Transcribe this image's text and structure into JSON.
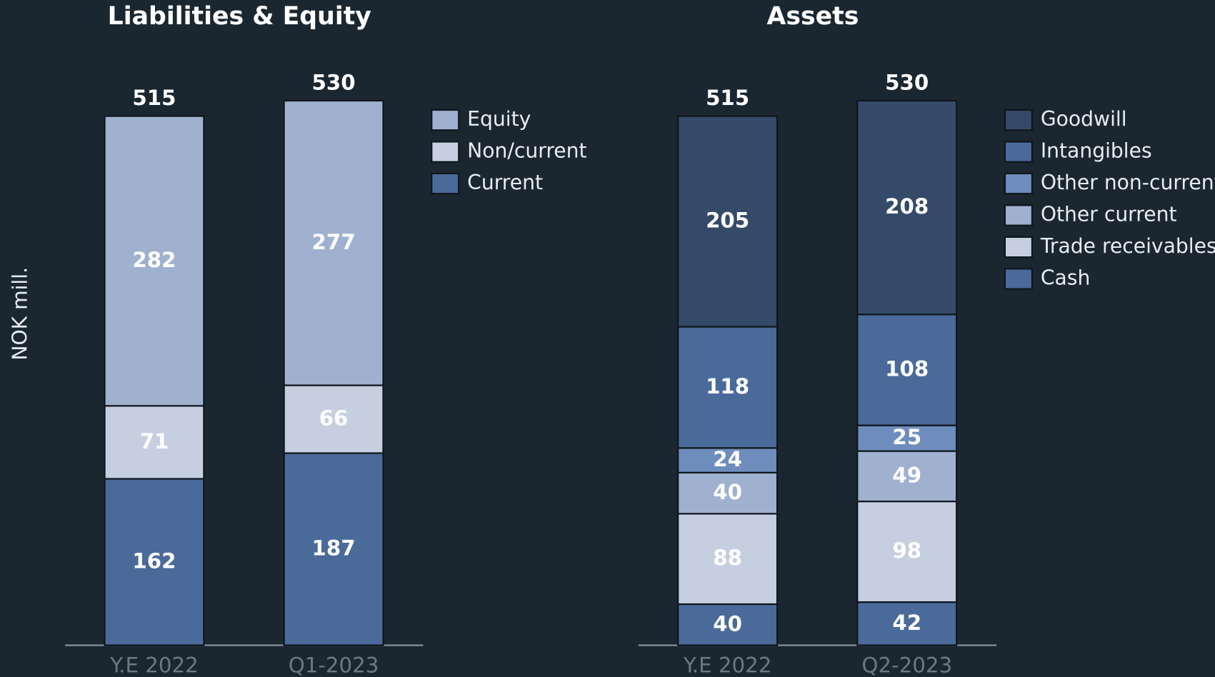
{
  "chart_data": [
    {
      "type": "bar",
      "stacked": true,
      "title": "Liabilities & Equity",
      "ylabel": "NOK mill.",
      "categories": [
        "Y.E 2022",
        "Q1-2023"
      ],
      "totals": [
        515,
        530
      ],
      "legend": "right",
      "series": [
        {
          "name": "Current",
          "color": "#4a6a9a",
          "values": [
            162,
            187
          ]
        },
        {
          "name": "Non/current",
          "color": "#c5cfe0",
          "values": [
            71,
            66
          ]
        },
        {
          "name": "Equity",
          "color": "#9fb1cf",
          "values": [
            282,
            277
          ]
        }
      ]
    },
    {
      "type": "bar",
      "stacked": true,
      "title": "Assets",
      "categories": [
        "Y.E 2022",
        "Q2-2023"
      ],
      "totals": [
        515,
        530
      ],
      "legend": "right",
      "series": [
        {
          "name": "Cash",
          "color": "#4a6a9a",
          "values": [
            40,
            42
          ]
        },
        {
          "name": "Trade receivables",
          "color": "#c5cfe0",
          "values": [
            88,
            98
          ]
        },
        {
          "name": "Other current",
          "color": "#9fb1cf",
          "values": [
            40,
            49
          ]
        },
        {
          "name": "Other non-current",
          "color": "#6e8dbd",
          "values": [
            24,
            25
          ]
        },
        {
          "name": "Intangibles",
          "color": "#4a6a9a",
          "values": [
            118,
            108
          ]
        },
        {
          "name": "Goodwill",
          "color": "#354a68",
          "values": [
            205,
            208
          ]
        }
      ]
    }
  ]
}
